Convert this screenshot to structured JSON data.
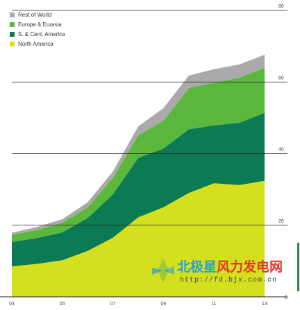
{
  "chart_data": {
    "type": "area",
    "stacked": true,
    "x": [
      2003,
      2004,
      2005,
      2006,
      2007,
      2008,
      2009,
      2010,
      2011,
      2012,
      2013
    ],
    "x_tick_labels": [
      "03",
      "05",
      "07",
      "09",
      "11",
      "13"
    ],
    "x_tick_values": [
      2003,
      2005,
      2007,
      2009,
      2011,
      2013
    ],
    "y_tick_labels": [
      "0",
      "20",
      "40",
      "60",
      "80"
    ],
    "y_tick_values": [
      0,
      20,
      40,
      60,
      80
    ],
    "ylim": [
      0,
      80
    ],
    "xlim": [
      2003,
      2013
    ],
    "y_axis_side": "right",
    "grid": "horizontal",
    "legend_position": "top-left",
    "series": [
      {
        "name": "North America",
        "color": "#d4df1e",
        "values": [
          8.5,
          9.2,
          10.2,
          12.8,
          16.5,
          22.2,
          25.0,
          29.0,
          31.7,
          31.2,
          32.4
        ]
      },
      {
        "name": "S. & Cent. America",
        "color": "#0c7a52",
        "values": [
          6.8,
          7.2,
          7.8,
          9.2,
          12.1,
          16.6,
          16.4,
          17.8,
          16.2,
          17.4,
          19.0
        ]
      },
      {
        "name": "Europe & Eurasia",
        "color": "#5cb83d",
        "values": [
          2.0,
          2.3,
          2.7,
          3.0,
          4.6,
          6.3,
          7.8,
          11.5,
          11.9,
          12.6,
          12.6
        ]
      },
      {
        "name": "Rest of World",
        "color": "#aaaaaa",
        "values": [
          0.6,
          0.8,
          1.0,
          1.4,
          1.8,
          2.5,
          3.5,
          3.5,
          3.8,
          3.7,
          3.6
        ]
      }
    ]
  },
  "legend": [
    {
      "label": "Rest of World",
      "color": "#aaaaaa"
    },
    {
      "label": "Europe & Eurasia",
      "color": "#5cb83d"
    },
    {
      "label": "S. & Cent. America",
      "color": "#0c7a52"
    },
    {
      "label": "North America",
      "color": "#d4df1e"
    }
  ],
  "watermark": {
    "text_a": "北极星",
    "text_b": "风力发电网",
    "url": "http://fd.bjx.com.cn",
    "color_a": "#2aa0d8",
    "color_b": "#e8322a"
  }
}
